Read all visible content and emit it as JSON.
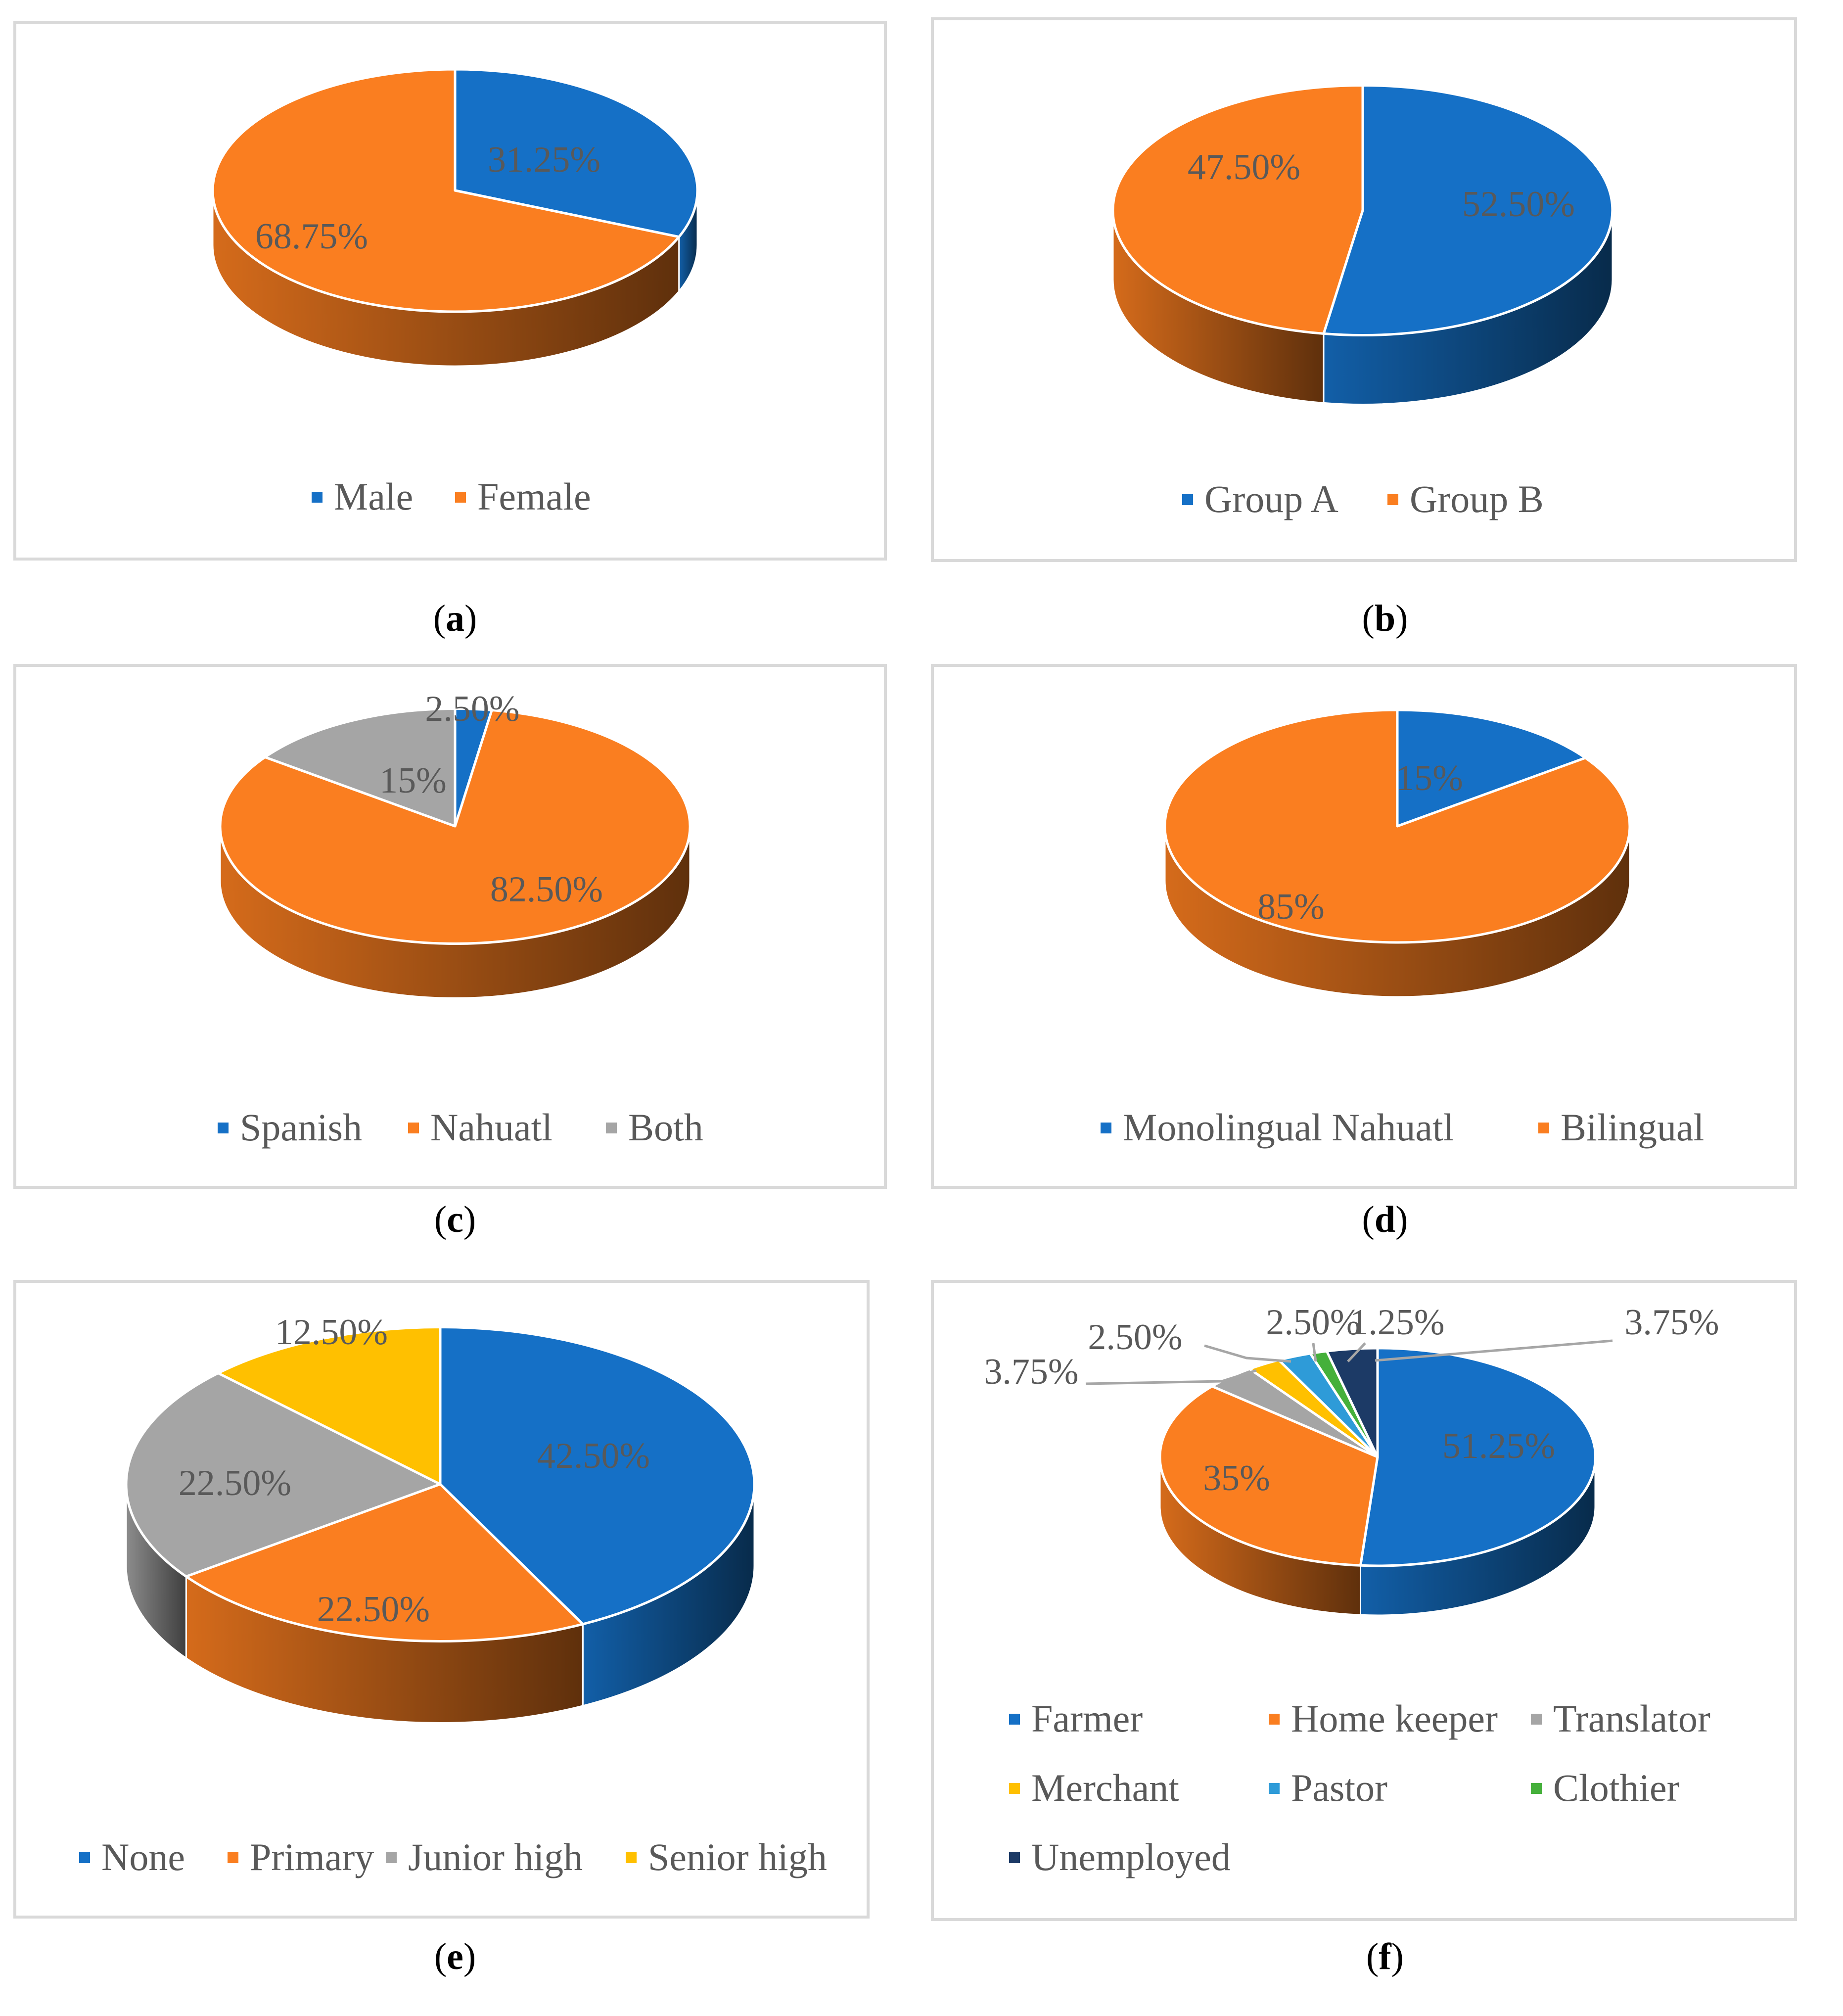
{
  "chart_data": [
    {
      "type": "pie",
      "panel": "a",
      "caption": [
        "(",
        "a",
        ")"
      ],
      "legend": [
        "Male",
        "Female"
      ],
      "data_labels": [
        "31.25%",
        "68.75%"
      ],
      "values": [
        31.25,
        68.75
      ],
      "colors": [
        "#1570c6",
        "#fa7e20"
      ]
    },
    {
      "type": "pie",
      "panel": "b",
      "caption": [
        "(",
        "b",
        ")"
      ],
      "legend": [
        "Group A",
        "Group B"
      ],
      "data_labels": [
        "52.50%",
        "47.50%"
      ],
      "values": [
        52.5,
        47.5
      ],
      "colors": [
        "#1570c6",
        "#fa7e20"
      ]
    },
    {
      "type": "pie",
      "panel": "c",
      "caption": [
        "(",
        "c",
        ")"
      ],
      "legend": [
        "Spanish",
        "Nahuatl",
        "Both"
      ],
      "data_labels": [
        "2.50%",
        "82.50%",
        "15%"
      ],
      "values": [
        2.5,
        82.5,
        15
      ],
      "colors": [
        "#1570c6",
        "#fa7e20",
        "#a5a5a5"
      ]
    },
    {
      "type": "pie",
      "panel": "d",
      "caption": [
        "(",
        "d",
        ")"
      ],
      "legend": [
        "Monolingual Nahuatl",
        "Bilingual"
      ],
      "data_labels": [
        "15%",
        "85%"
      ],
      "values": [
        15,
        85
      ],
      "colors": [
        "#1570c6",
        "#fa7e20"
      ]
    },
    {
      "type": "pie",
      "panel": "e",
      "caption": [
        "(",
        "e",
        ")"
      ],
      "legend": [
        "None",
        "Primary",
        "Junior high",
        "Senior high"
      ],
      "data_labels": [
        "42.50%",
        "22.50%",
        "22.50%",
        "12.50%"
      ],
      "values": [
        42.5,
        22.5,
        22.5,
        12.5
      ],
      "colors": [
        "#1570c6",
        "#fa7e20",
        "#a5a5a5",
        "#ffc000"
      ]
    },
    {
      "type": "pie",
      "panel": "f",
      "caption": [
        "(",
        "f",
        ")"
      ],
      "legend": [
        "Farmer",
        "Home keeper",
        "Translator",
        "Merchant",
        "Pastor",
        "Clothier",
        "Unemployed"
      ],
      "data_labels": [
        "51.25%",
        "35%",
        "3.75%",
        "2.50%",
        "2.50%",
        "1.25%",
        "3.75%"
      ],
      "values": [
        51.25,
        35,
        3.75,
        2.5,
        2.5,
        1.25,
        3.75
      ],
      "colors": [
        "#1570c6",
        "#fa7e20",
        "#a5a5a5",
        "#ffc000",
        "#2e9bd8",
        "#45b03b",
        "#1c3a66"
      ]
    }
  ]
}
